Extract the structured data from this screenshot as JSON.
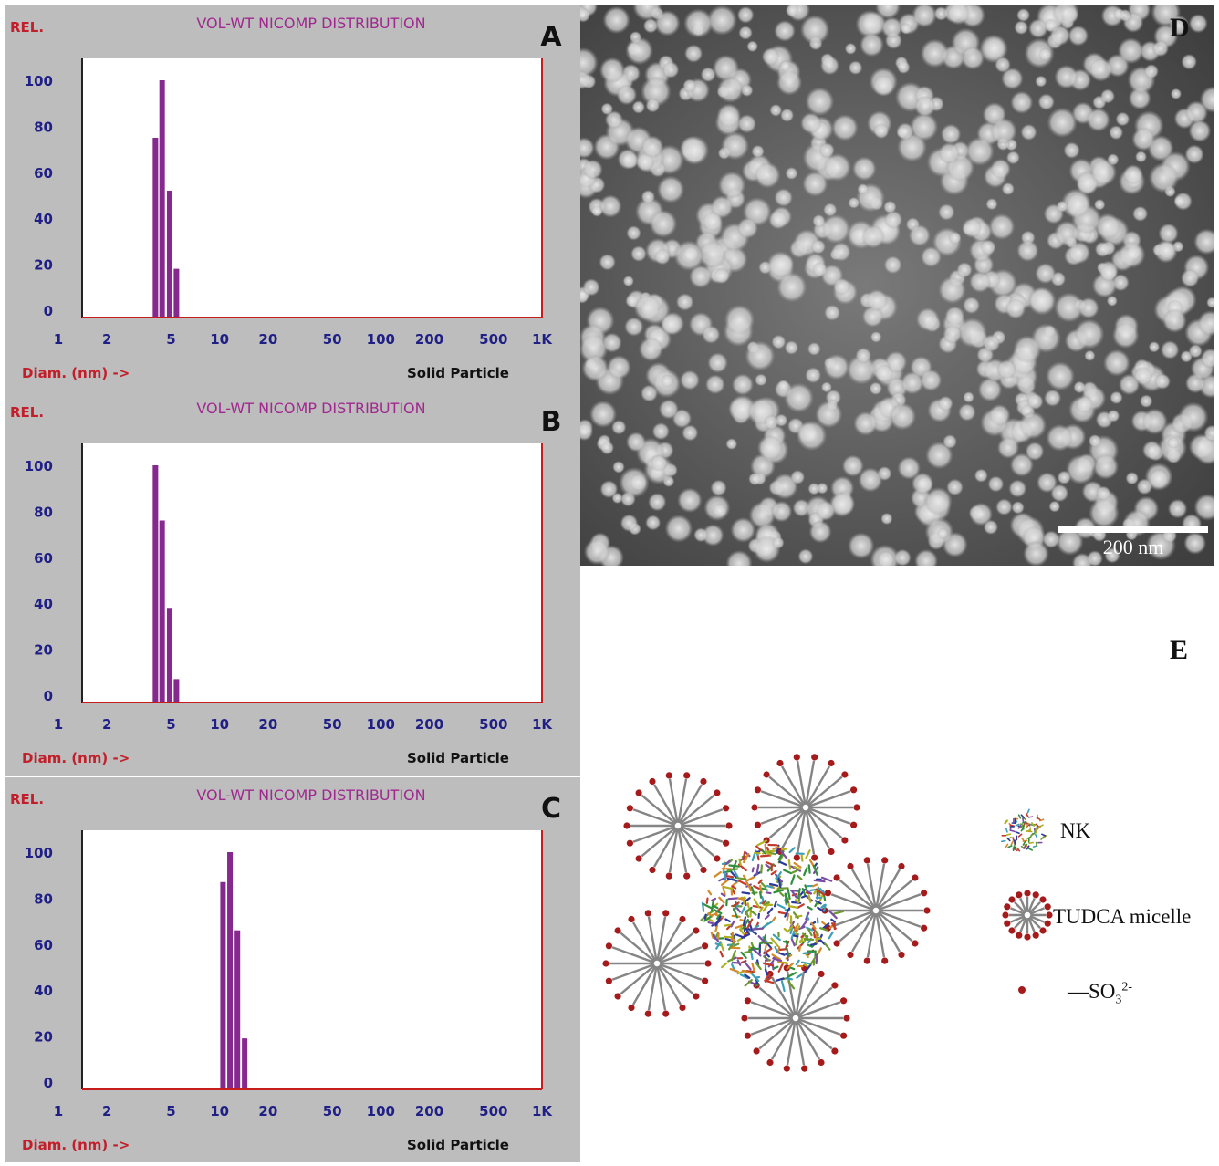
{
  "colors": {
    "bar": "#86298e",
    "axis_text": "#1f1f86",
    "red_text": "#c21f2b",
    "title": "#a0288f",
    "frame": "#c61c1c",
    "panel_bg": "#bdbdbd",
    "micelle_stroke": "#858585",
    "so3_dot": "#a51b1b"
  },
  "panels": [
    {
      "letter": "A",
      "rel_label": "REL.",
      "title": "VOL-WT NICOMP DISTRIBUTION",
      "xlabel": "Diam. (nm) ->",
      "mode_label": "Solid Particle"
    },
    {
      "letter": "B",
      "rel_label": "REL.",
      "title": "VOL-WT NICOMP DISTRIBUTION",
      "xlabel": "Diam. (nm) ->",
      "mode_label": "Solid Particle"
    },
    {
      "letter": "C",
      "rel_label": "REL.",
      "title": "VOL-WT NICOMP DISTRIBUTION",
      "xlabel": "Diam. (nm) ->",
      "mode_label": "Solid Particle"
    }
  ],
  "chart_data": [
    {
      "type": "bar",
      "title": "VOL-WT NICOMP DISTRIBUTION",
      "xlabel": "Diam. (nm) ->",
      "ylabel": "REL.",
      "x_scale": "log",
      "xlim": [
        1,
        1000
      ],
      "ylim": [
        0,
        100
      ],
      "x_ticks": [
        "1",
        "2",
        "5",
        "10",
        "20",
        "50",
        "100",
        "200",
        "500",
        "1K"
      ],
      "y_ticks": [
        "100",
        "80",
        "60",
        "40",
        "20",
        "0"
      ],
      "x": [
        4.0,
        4.4,
        4.9,
        5.4
      ],
      "values": [
        75,
        100,
        52,
        18
      ]
    },
    {
      "type": "bar",
      "title": "VOL-WT NICOMP DISTRIBUTION",
      "xlabel": "Diam. (nm) ->",
      "ylabel": "REL.",
      "x_scale": "log",
      "xlim": [
        1,
        1000
      ],
      "ylim": [
        0,
        100
      ],
      "x_ticks": [
        "1",
        "2",
        "5",
        "10",
        "20",
        "50",
        "100",
        "200",
        "500",
        "1K"
      ],
      "y_ticks": [
        "100",
        "80",
        "60",
        "40",
        "20",
        "0"
      ],
      "x": [
        4.0,
        4.4,
        4.9,
        5.4
      ],
      "values": [
        100,
        76,
        38,
        7
      ]
    },
    {
      "type": "bar",
      "title": "VOL-WT NICOMP DISTRIBUTION",
      "xlabel": "Diam. (nm) ->",
      "ylabel": "REL.",
      "x_scale": "log",
      "xlim": [
        1,
        1000
      ],
      "ylim": [
        0,
        100
      ],
      "x_ticks": [
        "1",
        "2",
        "5",
        "10",
        "20",
        "50",
        "100",
        "200",
        "500",
        "1K"
      ],
      "y_ticks": [
        "100",
        "80",
        "60",
        "40",
        "20",
        "0"
      ],
      "x": [
        10.5,
        11.6,
        12.9,
        14.3
      ],
      "values": [
        87,
        100,
        66,
        19
      ]
    }
  ],
  "panel_d": {
    "letter": "D",
    "scale_bar_label": "200 nm"
  },
  "panel_e": {
    "letter": "E",
    "legend": {
      "nk": "NK",
      "micelle": "TUDCA micelle",
      "so3_prefix": "—SO",
      "so3_sub": "3",
      "so3_sup": "2-"
    }
  }
}
